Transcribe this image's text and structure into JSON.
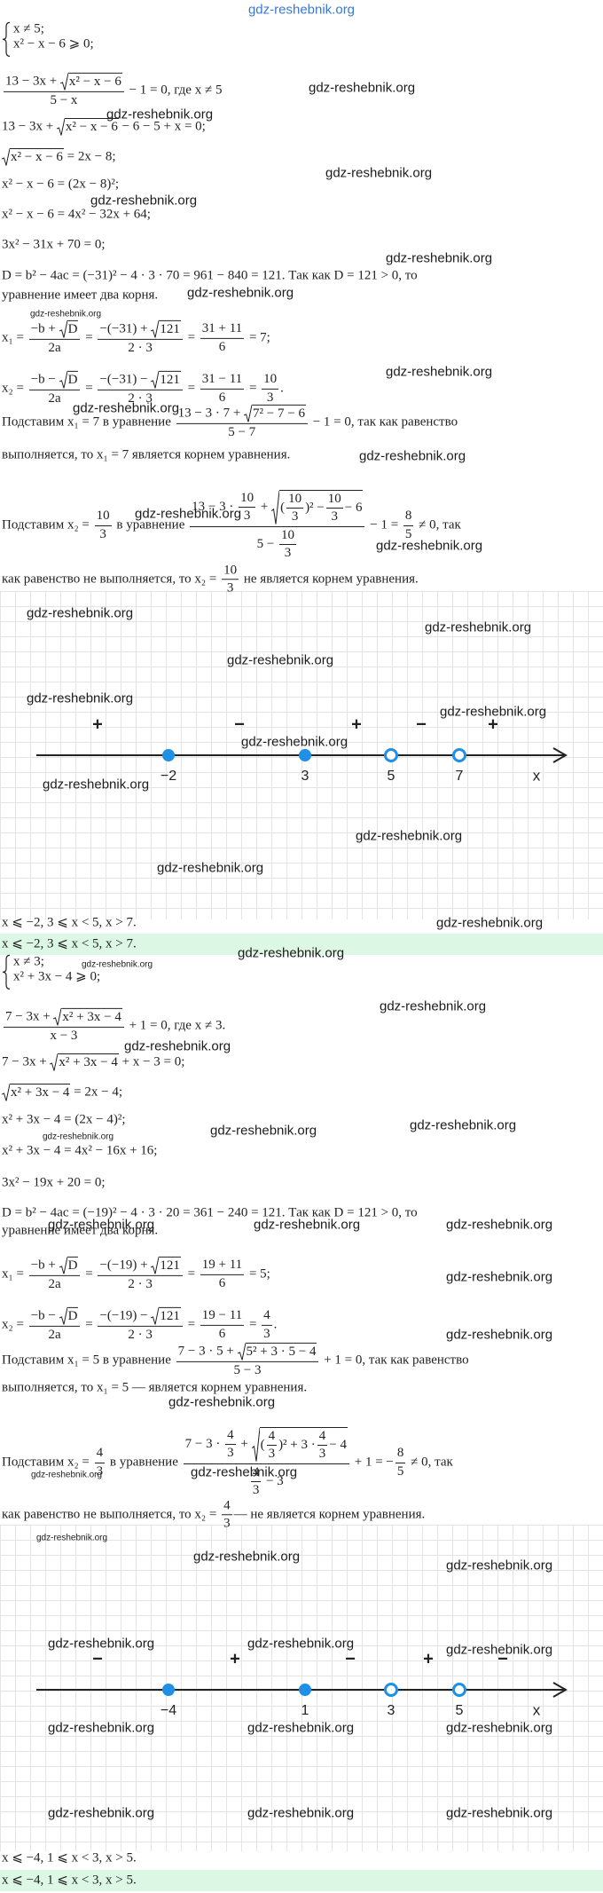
{
  "site_header": "gdz-reshebnik.org",
  "parts": [
    {
      "lines": [
        {
          "system": [
            "x ≠ 5;",
            "x² − x − 6 ⩾ 0;"
          ]
        },
        [
          {
            "num": [
              "13 − 3x + ",
              {
                "sqrt": "x² − x − 6"
              }
            ],
            "den": "5 − x"
          },
          " − 1 = 0, где x ≠ 5"
        ],
        [
          "13 − 3x + ",
          {
            "sqrt": "x² − x − 6"
          },
          " − 6 − 5 + x = 0;"
        ],
        [
          {
            "sqrt": "x² − x − 6"
          },
          " = 2x − 8;"
        ],
        [
          "x² − x − 6 = (2x − 8)²;"
        ],
        [
          "x² − x − 6 = 4x² − 32x + 64;"
        ],
        [
          "3x² − 31x + 70 = 0;"
        ],
        [
          "D = b² − 4ac = (−31)² − 4 · 3 · 70 = 961 − 840 = 121. Так как D = 121 > 0, то"
        ],
        [
          "уравнение имеет два корня."
        ],
        [
          "x₁ = ",
          {
            "num": [
              "−b + ",
              {
                "sqrt": "D"
              }
            ],
            "den": "2a"
          },
          " = ",
          {
            "num": [
              "−(−31) + ",
              {
                "sqrt": "121"
              }
            ],
            "den": "2 · 3"
          },
          " = ",
          {
            "num": "31 + 11",
            "den": "6"
          },
          " = 7;"
        ],
        [
          "x₂ = ",
          {
            "num": [
              "−b − ",
              {
                "sqrt": "D"
              }
            ],
            "den": "2a"
          },
          " = ",
          {
            "num": [
              "−(−31) − ",
              {
                "sqrt": "121"
              }
            ],
            "den": "2 · 3"
          },
          " = ",
          {
            "num": "31 − 11",
            "den": "6"
          },
          " = ",
          {
            "num": "10",
            "den": "3"
          },
          "."
        ],
        [
          "Подставим x₁ = 7 в уравнение ",
          {
            "num": [
              "13 − 3 · 7 + ",
              {
                "sqrt": "7² − 7 − 6"
              }
            ],
            "den": "5 − 7"
          },
          " − 1 = 0, так как равенство"
        ],
        [
          "выполняется, то x₁ = 7 является корнем уравнения."
        ],
        [
          "Подставим x₂ = ",
          {
            "num": "10",
            "den": "3"
          },
          " в уравнение ",
          {
            "num": [
              "13 − 3 · ",
              {
                "num": "10",
                "den": "3"
              },
              " + ",
              {
                "sqrt": [
                  "(",
                  {
                    "num": "10",
                    "den": "3"
                  },
                  ")² − ",
                  {
                    "num": "10",
                    "den": "3"
                  },
                  " − 6"
                ]
              }
            ],
            "den": [
              "5 − ",
              {
                "num": "10",
                "den": "3"
              }
            ]
          },
          " − 1 = ",
          {
            "num": "8",
            "den": "5"
          },
          " ≠ 0, так"
        ],
        [
          "как равенство не выполняется, то x₂ = ",
          {
            "num": "10",
            "den": "3"
          },
          " не является корнем уравнения."
        ]
      ],
      "number_line": {
        "signs": [
          "+",
          "−",
          "+",
          "−",
          "+"
        ],
        "points": [
          "−2",
          "3",
          "5",
          "7"
        ],
        "open": [
          false,
          false,
          true,
          true
        ],
        "axis_label": "x"
      },
      "answers": [
        "x ⩽ −2, 3 ⩽ x < 5, x > 7.",
        "x ⩽ −2, 3 ⩽ x < 5, x > 7."
      ]
    },
    {
      "lines": [
        {
          "system": [
            "x ≠ 3;",
            "x² + 3x − 4 ⩾ 0;"
          ]
        },
        [
          {
            "num": [
              "7 − 3x + ",
              {
                "sqrt": "x² + 3x − 4"
              }
            ],
            "den": "x − 3"
          },
          " + 1 = 0, где x ≠ 3."
        ],
        [
          "7 − 3x + ",
          {
            "sqrt": "x² + 3x − 4"
          },
          " + x − 3 = 0;"
        ],
        [
          {
            "sqrt": "x² + 3x − 4"
          },
          " = 2x − 4;"
        ],
        [
          "x² + 3x − 4 = (2x − 4)²;"
        ],
        [
          "x² + 3x − 4 = 4x² − 16x + 16;"
        ],
        [
          "3x² − 19x + 20 = 0;"
        ],
        [
          "D = b² − 4ac = (−19)² − 4 · 3 · 20 = 361 − 240 = 121. Так как D = 121 > 0, то"
        ],
        [
          "уравнение имеет два корня."
        ],
        [
          "x₁ = ",
          {
            "num": [
              "−b + ",
              {
                "sqrt": "D"
              }
            ],
            "den": "2a"
          },
          " = ",
          {
            "num": [
              "−(−19) + ",
              {
                "sqrt": "121"
              }
            ],
            "den": "2 · 3"
          },
          " = ",
          {
            "num": "19 + 11",
            "den": "6"
          },
          " = 5;"
        ],
        [
          "x₂ = ",
          {
            "num": [
              "−b − ",
              {
                "sqrt": "D"
              }
            ],
            "den": "2a"
          },
          " = ",
          {
            "num": [
              "−(−19) − ",
              {
                "sqrt": "121"
              }
            ],
            "den": "2 · 3"
          },
          " = ",
          {
            "num": "19 − 11",
            "den": "6"
          },
          " = ",
          {
            "num": "4",
            "den": "3"
          },
          "."
        ],
        [
          "Подставим x₁ = 5 в уравнение ",
          {
            "num": [
              "7 − 3 · 5 + ",
              {
                "sqrt": "5² + 3 · 5 − 4"
              }
            ],
            "den": "5 − 3"
          },
          " + 1 = 0, так как равенство"
        ],
        [
          "выполняется, то x₁ = 5 — является корнем уравнения."
        ],
        [
          "Подставим x₂ = ",
          {
            "num": "4",
            "den": "3"
          },
          " в уравнение ",
          {
            "num": [
              "7 − 3 · ",
              {
                "num": "4",
                "den": "3"
              },
              " + ",
              {
                "sqrt": [
                  "(",
                  {
                    "num": "4",
                    "den": "3"
                  },
                  ")² + 3 · ",
                  {
                    "num": "4",
                    "den": "3"
                  },
                  " − 4"
                ]
              }
            ],
            "den": [
              {
                "num": "4",
                "den": "3"
              },
              " − 3"
            ]
          },
          " + 1 = −",
          {
            "num": "8",
            "den": "5"
          },
          " ≠ 0, так"
        ],
        [
          "как равенство не выполняется, то x₂ = ",
          {
            "num": "4",
            "den": "3"
          },
          "— не является корнем уравнения."
        ]
      ],
      "number_line": {
        "signs": [
          "−",
          "+",
          "−",
          "+",
          "−"
        ],
        "points": [
          "−4",
          "1",
          "3",
          "5"
        ],
        "open": [
          false,
          false,
          true,
          true
        ],
        "axis_label": "x"
      },
      "answers": [
        "x ⩽ −4, 1 ⩽ x < 3, x > 5.",
        "x ⩽ −4, 1 ⩽ x < 3, x > 5."
      ]
    }
  ],
  "watermarks": [
    "gdz-reshebnik.org",
    "gdz-reshebnik.org",
    "gdz-reshebnik.org",
    "gdz-reshebnik.org",
    "gdz-reshebnik.org",
    "gdz-reshebnik.org",
    "gdz-reshebnik.org",
    "gdz-reshebnik.org",
    "gdz-reshebnik.org",
    "gdz-reshebnik.org",
    "gdz-reshebnik.org",
    "gdz-reshebnik.org",
    "gdz-reshebnik.org",
    "gdz-reshebnik.org",
    "gdz-reshebnik.org",
    "gdz-reshebnik.org",
    "gdz-reshebnik.org",
    "gdz-reshebnik.org",
    "gdz-reshebnik.org",
    "gdz-reshebnik.org",
    "gdz-reshebnik.org",
    "gdz-reshebnik.org",
    "gdz-reshebnik.org",
    "gdz-reshebnik.org",
    "gdz-reshebnik.org",
    "gdz-reshebnik.org",
    "gdz-reshebnik.org",
    "gdz-reshebnik.org",
    "gdz-reshebnik.org",
    "gdz-reshebnik.org",
    "gdz-reshebnik.org",
    "gdz-reshebnik.org",
    "gdz-reshebnik.org",
    "gdz-reshebnik.org",
    "gdz-reshebnik.org",
    "gdz-reshebnik.org",
    "gdz-reshebnik.org",
    "gdz-reshebnik.org",
    "gdz-reshebnik.org",
    "gdz-reshebnik.org",
    "gdz-reshebnik.org",
    "gdz-reshebnik.org",
    "gdz-reshebnik.org",
    "gdz-reshebnik.org",
    "gdz-reshebnik.org",
    "gdz-reshebnik.org",
    "gdz-reshebnik.org",
    "gdz-reshebnik.org",
    "gdz-reshebnik.org"
  ]
}
